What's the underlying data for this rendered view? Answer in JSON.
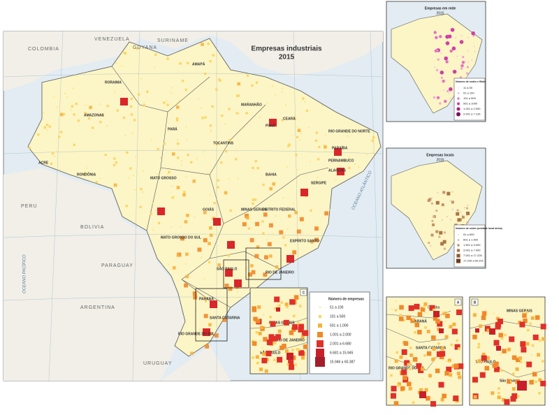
{
  "main_map": {
    "title": "Empresas industriais",
    "subtitle": "2015",
    "countries": [
      "COLOMBIA",
      "VENEZUELA",
      "GUYANA",
      "SURINAME",
      "PERU",
      "BOLIVIA",
      "PARAGUAY",
      "ARGENTINA",
      "URUGUAY"
    ],
    "oceans": [
      "OCEANO ATLÂNTICO",
      "OCEANO PACÍFICO"
    ],
    "states": [
      "RORAIMA",
      "AMAPÁ",
      "AMAZONAS",
      "PARÁ",
      "MARANHÃO",
      "CEARÁ",
      "RIO GRANDE DO NORTE",
      "PARAÍBA",
      "PERNAMBUCO",
      "ALAGOAS",
      "SERGIPE",
      "PIAUÍ",
      "BAHIA",
      "TOCANTINS",
      "ACRE",
      "RONDÔNIA",
      "MATO GROSSO",
      "GOIÁS",
      "MINAS GERAIS",
      "ESPÍRITO SANTO",
      "MATO GROSSO DO SUL",
      "SÃO PAULO",
      "RIO DE JANEIRO",
      "PARANÁ",
      "SANTA CATARINA",
      "RIO GRANDE DO SUL",
      "DISTRITO FEDERAL"
    ],
    "legend": {
      "title": "Número de empresas",
      "items": [
        "51 a 100",
        "101 a 500",
        "501 a 1.000",
        "1.001 a 2.000",
        "2.001 a 6.680",
        "6.681 a 15.945",
        "15.946 a 60.387"
      ]
    },
    "inset_c": {
      "label": "C",
      "states": [
        "MINAS GERAIS",
        "RIO DE JANEIRO",
        "SÃO PAULO"
      ]
    }
  },
  "side_maps": [
    {
      "title": "Empresas em rede",
      "subtitle": "2015",
      "legend": {
        "title": "Número de sedes e filiais",
        "items": [
          "11 a 50",
          "51 a 100",
          "101 a 500",
          "501 a 1000",
          "1.001 a 2.000",
          "2.001 a 7.126"
        ]
      }
    },
    {
      "title": "Empresas locais",
      "subtitle": "2015",
      "legend": {
        "title": "Número de sedes (unidade local única)",
        "items": [
          "51 a 600",
          "601 a 1.500",
          "1.501 a 3.000",
          "3.001 a 7.000",
          "7.001 a 17.226",
          "17.226 a 60.201"
        ]
      }
    }
  ],
  "zoom_a": {
    "label": "A",
    "places": [
      "PARANÁ",
      "Curitiba",
      "SANTA CATARINA",
      "RIO GRANDE DO SUL"
    ]
  },
  "zoom_b": {
    "label": "B",
    "places": [
      "MINAS GERAIS",
      "SÃO PAULO",
      "São Paulo"
    ]
  }
}
